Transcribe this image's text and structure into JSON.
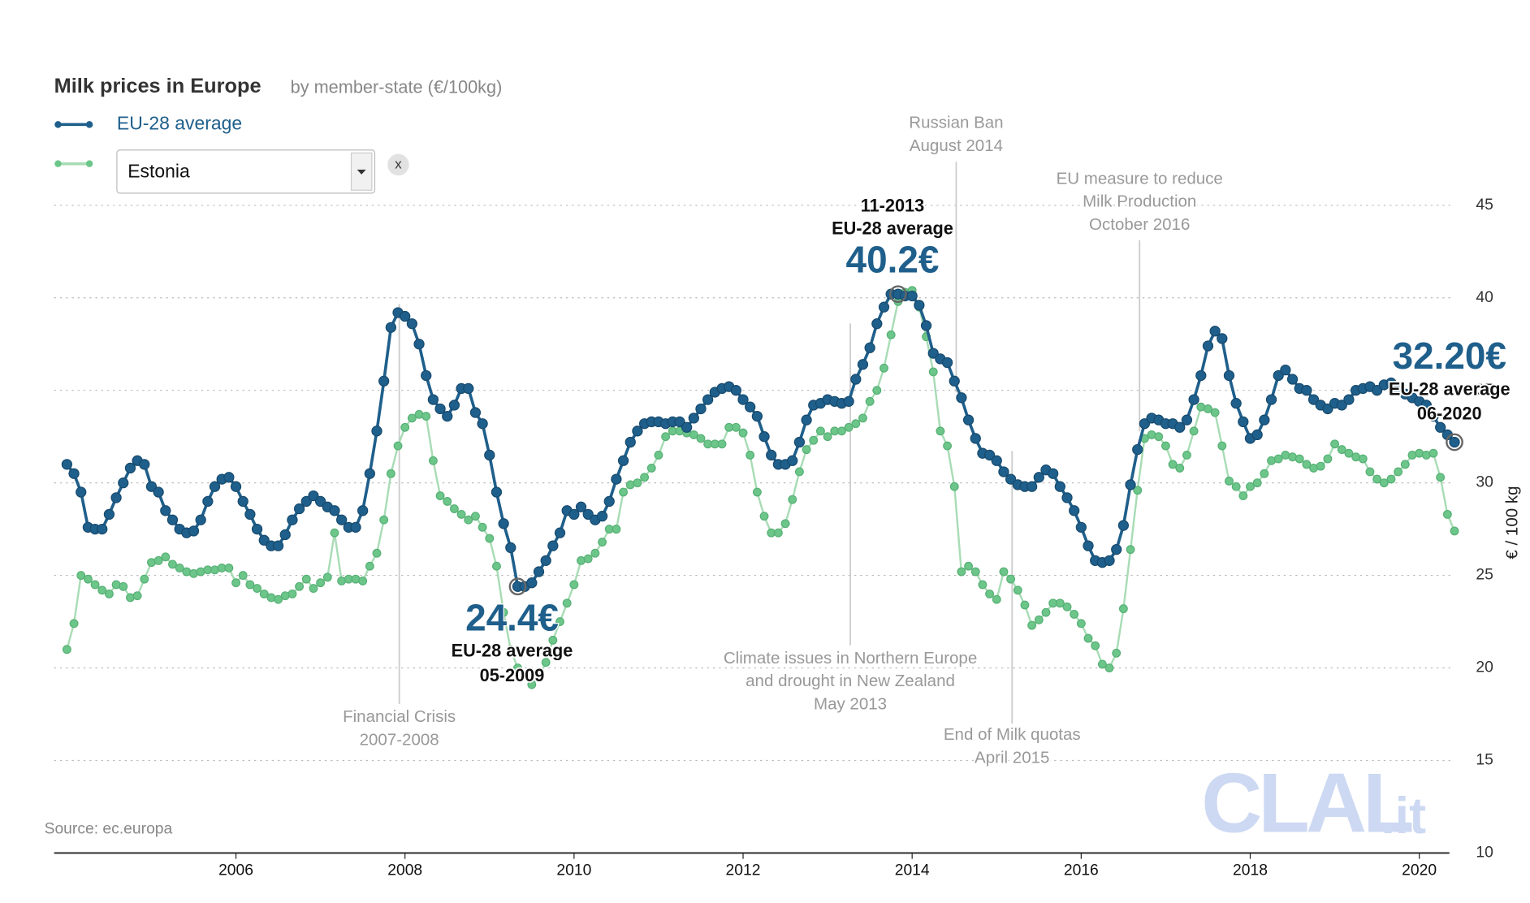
{
  "chart_data": {
    "type": "line",
    "title": "Milk prices in Europe",
    "subtitle": "by member-state (€/100kg)",
    "source": "Source: ec.europa",
    "y_axis_label": "€ / 100 kg",
    "logo": {
      "main": "CLAL",
      "suffix": ".it"
    },
    "selector": {
      "selected": "Estonia",
      "clear": "x"
    },
    "xlim": [
      2003.93,
      2020.6
    ],
    "xticks": [
      2006,
      2008,
      2010,
      2012,
      2014,
      2016,
      2018,
      2020
    ],
    "ylim": [
      10,
      50
    ],
    "yticks": [
      10,
      15,
      20,
      25,
      30,
      35,
      40,
      45
    ],
    "grid": true,
    "x": [
      "2004-01",
      "2004-02",
      "2004-03",
      "2004-04",
      "2004-05",
      "2004-06",
      "2004-07",
      "2004-08",
      "2004-09",
      "2004-10",
      "2004-11",
      "2004-12",
      "2005-01",
      "2005-02",
      "2005-03",
      "2005-04",
      "2005-05",
      "2005-06",
      "2005-07",
      "2005-08",
      "2005-09",
      "2005-10",
      "2005-11",
      "2005-12",
      "2006-01",
      "2006-02",
      "2006-03",
      "2006-04",
      "2006-05",
      "2006-06",
      "2006-07",
      "2006-08",
      "2006-09",
      "2006-10",
      "2006-11",
      "2006-12",
      "2007-01",
      "2007-02",
      "2007-03",
      "2007-04",
      "2007-05",
      "2007-06",
      "2007-07",
      "2007-08",
      "2007-09",
      "2007-10",
      "2007-11",
      "2007-12",
      "2008-01",
      "2008-02",
      "2008-03",
      "2008-04",
      "2008-05",
      "2008-06",
      "2008-07",
      "2008-08",
      "2008-09",
      "2008-10",
      "2008-11",
      "2008-12",
      "2009-01",
      "2009-02",
      "2009-03",
      "2009-04",
      "2009-05",
      "2009-06",
      "2009-07",
      "2009-08",
      "2009-09",
      "2009-10",
      "2009-11",
      "2009-12",
      "2010-01",
      "2010-02",
      "2010-03",
      "2010-04",
      "2010-05",
      "2010-06",
      "2010-07",
      "2010-08",
      "2010-09",
      "2010-10",
      "2010-11",
      "2010-12",
      "2011-01",
      "2011-02",
      "2011-03",
      "2011-04",
      "2011-05",
      "2011-06",
      "2011-07",
      "2011-08",
      "2011-09",
      "2011-10",
      "2011-11",
      "2011-12",
      "2012-01",
      "2012-02",
      "2012-03",
      "2012-04",
      "2012-05",
      "2012-06",
      "2012-07",
      "2012-08",
      "2012-09",
      "2012-10",
      "2012-11",
      "2012-12",
      "2013-01",
      "2013-02",
      "2013-03",
      "2013-04",
      "2013-05",
      "2013-06",
      "2013-07",
      "2013-08",
      "2013-09",
      "2013-10",
      "2013-11",
      "2013-12",
      "2014-01",
      "2014-02",
      "2014-03",
      "2014-04",
      "2014-05",
      "2014-06",
      "2014-07",
      "2014-08",
      "2014-09",
      "2014-10",
      "2014-11",
      "2014-12",
      "2015-01",
      "2015-02",
      "2015-03",
      "2015-04",
      "2015-05",
      "2015-06",
      "2015-07",
      "2015-08",
      "2015-09",
      "2015-10",
      "2015-11",
      "2015-12",
      "2016-01",
      "2016-02",
      "2016-03",
      "2016-04",
      "2016-05",
      "2016-06",
      "2016-07",
      "2016-08",
      "2016-09",
      "2016-10",
      "2016-11",
      "2016-12",
      "2017-01",
      "2017-02",
      "2017-03",
      "2017-04",
      "2017-05",
      "2017-06",
      "2017-07",
      "2017-08",
      "2017-09",
      "2017-10",
      "2017-11",
      "2017-12",
      "2018-01",
      "2018-02",
      "2018-03",
      "2018-04",
      "2018-05",
      "2018-06",
      "2018-07",
      "2018-08",
      "2018-09",
      "2018-10",
      "2018-11",
      "2018-12",
      "2019-01",
      "2019-02",
      "2019-03",
      "2019-04",
      "2019-05",
      "2019-06",
      "2019-07",
      "2019-08",
      "2019-09",
      "2019-10",
      "2019-11",
      "2019-12",
      "2020-01",
      "2020-02",
      "2020-03",
      "2020-04",
      "2020-05",
      "2020-06"
    ],
    "series": [
      {
        "name": "EU-28 average",
        "color": "#1f5f8b",
        "values": [
          31.0,
          30.5,
          29.5,
          27.6,
          27.5,
          27.5,
          28.3,
          29.2,
          30.0,
          30.8,
          31.2,
          31.0,
          29.8,
          29.5,
          28.5,
          28.0,
          27.5,
          27.3,
          27.4,
          28.0,
          29.0,
          29.8,
          30.2,
          30.3,
          29.8,
          29.0,
          28.3,
          27.5,
          26.9,
          26.6,
          26.6,
          27.2,
          28.0,
          28.6,
          29.0,
          29.3,
          29.0,
          28.7,
          28.5,
          28.0,
          27.6,
          27.6,
          28.5,
          30.5,
          32.8,
          35.5,
          38.4,
          39.2,
          39.0,
          38.6,
          37.5,
          35.8,
          34.5,
          34.0,
          33.6,
          34.2,
          35.1,
          35.1,
          33.8,
          33.2,
          31.5,
          29.5,
          27.8,
          26.5,
          24.4,
          24.4,
          24.6,
          25.2,
          25.8,
          26.6,
          27.3,
          28.5,
          28.3,
          28.7,
          28.3,
          28.0,
          28.2,
          29.0,
          30.2,
          31.2,
          32.2,
          32.8,
          33.2,
          33.3,
          33.3,
          33.2,
          33.3,
          33.3,
          33.0,
          33.5,
          34.0,
          34.5,
          34.9,
          35.1,
          35.2,
          35.0,
          34.5,
          34.1,
          33.6,
          32.5,
          31.5,
          31.0,
          31.0,
          31.2,
          32.2,
          33.4,
          34.2,
          34.3,
          34.5,
          34.4,
          34.3,
          34.4,
          35.6,
          36.4,
          37.3,
          38.6,
          39.5,
          40.2,
          40.2,
          40.1,
          40.1,
          39.6,
          38.5,
          37.0,
          36.7,
          36.5,
          35.5,
          34.6,
          33.4,
          32.4,
          31.6,
          31.5,
          31.2,
          30.6,
          30.2,
          29.9,
          29.8,
          29.8,
          30.3,
          30.7,
          30.5,
          29.8,
          29.2,
          28.5,
          27.6,
          26.6,
          25.8,
          25.7,
          25.8,
          26.4,
          27.7,
          29.9,
          31.8,
          33.2,
          33.5,
          33.4,
          33.2,
          33.2,
          33.0,
          33.4,
          34.5,
          35.8,
          37.4,
          38.2,
          37.8,
          35.8,
          34.3,
          33.3,
          32.4,
          32.6,
          33.4,
          34.5,
          35.8,
          36.1,
          35.6,
          35.1,
          35.0,
          34.5,
          34.2,
          34.0,
          34.3,
          34.2,
          34.5,
          35.0,
          35.1,
          35.2,
          35.0,
          35.3,
          35.4,
          35.0,
          34.8,
          34.6,
          34.4,
          34.2,
          33.6,
          33.0,
          32.6,
          32.2
        ]
      },
      {
        "name": "Estonia",
        "color": "#6cc68a",
        "values": [
          21.0,
          22.4,
          25.0,
          24.8,
          24.5,
          24.2,
          24.0,
          24.5,
          24.4,
          23.8,
          23.9,
          24.8,
          25.7,
          25.8,
          26.0,
          25.6,
          25.4,
          25.2,
          25.1,
          25.2,
          25.3,
          25.3,
          25.4,
          25.4,
          24.6,
          25.0,
          24.5,
          24.3,
          24.0,
          23.8,
          23.7,
          23.9,
          24.0,
          24.4,
          24.8,
          24.3,
          24.6,
          24.9,
          27.3,
          24.7,
          24.8,
          24.8,
          24.7,
          25.5,
          26.2,
          28.0,
          30.5,
          32.0,
          33.0,
          33.5,
          33.7,
          33.6,
          31.2,
          29.3,
          29.0,
          28.6,
          28.3,
          28.0,
          28.2,
          27.6,
          27.0,
          25.5,
          23.0,
          21.0,
          20.0,
          19.6,
          19.1,
          19.5,
          20.3,
          21.5,
          22.5,
          23.5,
          24.5,
          25.8,
          25.9,
          26.2,
          26.8,
          27.5,
          27.5,
          29.5,
          29.9,
          30.0,
          30.3,
          30.8,
          31.5,
          32.5,
          32.8,
          32.8,
          32.7,
          32.6,
          32.4,
          32.1,
          32.1,
          32.1,
          33.0,
          33.0,
          32.7,
          31.5,
          29.5,
          28.2,
          27.3,
          27.3,
          27.8,
          29.1,
          30.6,
          31.8,
          32.3,
          32.8,
          32.5,
          32.8,
          32.8,
          33.0,
          33.2,
          33.5,
          34.4,
          35.0,
          36.2,
          38.0,
          39.8,
          40.3,
          40.4,
          39.5,
          37.9,
          36.0,
          32.8,
          32.0,
          29.8,
          25.2,
          25.5,
          25.2,
          24.5,
          24.0,
          23.7,
          25.2,
          24.8,
          24.2,
          23.4,
          22.3,
          22.6,
          23.0,
          23.5,
          23.5,
          23.3,
          22.9,
          22.4,
          21.6,
          21.2,
          20.2,
          20.0,
          20.8,
          23.2,
          26.4,
          29.6,
          32.4,
          32.6,
          32.5,
          32.0,
          31.0,
          30.8,
          31.5,
          32.8,
          34.1,
          34.0,
          33.8,
          32.0,
          30.1,
          29.8,
          29.3,
          29.8,
          30.0,
          30.5,
          31.2,
          31.3,
          31.5,
          31.4,
          31.3,
          31.0,
          30.8,
          30.9,
          31.3,
          32.1,
          31.8,
          31.6,
          31.4,
          31.3,
          30.6,
          30.2,
          30.0,
          30.2,
          30.6,
          31.0,
          31.5,
          31.6,
          31.5,
          31.6,
          30.3,
          28.3,
          27.4
        ]
      }
    ],
    "callouts": [
      {
        "value": 24.4,
        "label": "24.4€",
        "name": "EU-28 average",
        "date": "05-2009"
      },
      {
        "value": 40.2,
        "label": "40.2€",
        "name": "EU-28 average",
        "date": "11-2013"
      },
      {
        "value": 32.2,
        "label": "32.20€",
        "name": "EU-28 average",
        "date": "06-2020"
      }
    ],
    "annotations": [
      {
        "lines": [
          "Financial Crisis",
          "2007-2008"
        ]
      },
      {
        "lines": [
          "Russian Ban",
          "August 2014"
        ]
      },
      {
        "lines": [
          "EU measure to reduce",
          "Milk Production",
          "October 2016"
        ]
      },
      {
        "lines": [
          "Climate issues in Northern Europe",
          "and drought in New Zealand",
          "May 2013"
        ]
      },
      {
        "lines": [
          "End of Milk quotas",
          "April 2015"
        ]
      }
    ]
  }
}
